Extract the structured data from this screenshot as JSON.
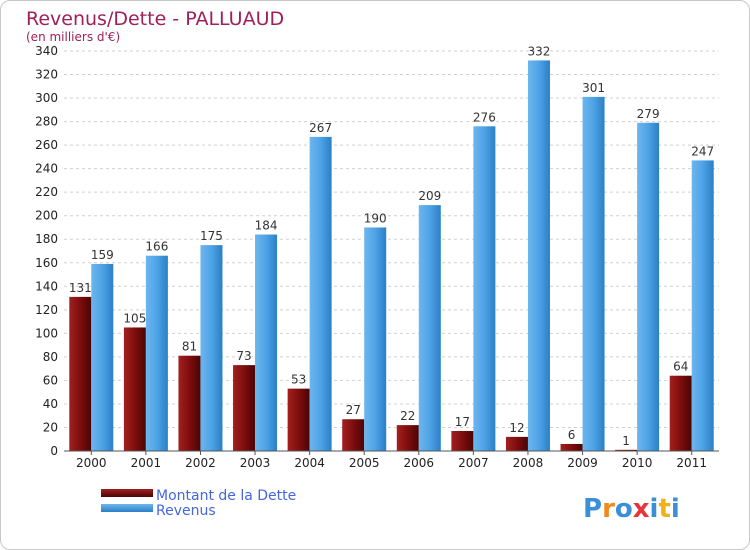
{
  "chart_data": {
    "type": "bar",
    "title": "Revenus/Dette - PALLUAUD",
    "subtitle": "(en milliers d'€)",
    "categories": [
      "2000",
      "2001",
      "2002",
      "2003",
      "2004",
      "2005",
      "2006",
      "2007",
      "2008",
      "2009",
      "2010",
      "2011"
    ],
    "series": [
      {
        "name": "Montant de la Dette",
        "color": "#7a0c0c",
        "values": [
          131,
          105,
          81,
          73,
          53,
          27,
          22,
          17,
          12,
          6,
          1,
          64
        ]
      },
      {
        "name": "Revenus",
        "color": "#4a9fe3",
        "values": [
          159,
          166,
          175,
          184,
          267,
          190,
          209,
          276,
          332,
          301,
          279,
          247
        ]
      }
    ],
    "ylim": [
      0,
      340
    ],
    "yticks": [
      0,
      20,
      40,
      60,
      80,
      100,
      120,
      140,
      160,
      180,
      200,
      220,
      240,
      260,
      280,
      300,
      320,
      340
    ],
    "grid": true,
    "legend": "bottom-left"
  },
  "logo": {
    "letters": [
      "P",
      "r",
      "o",
      "x",
      "i",
      "t",
      "i"
    ],
    "colors": [
      "#3a8fd8",
      "#f08a1c",
      "#3a8fd8",
      "#e8333a",
      "#3a8fd8",
      "#f0b21c",
      "#3a8fd8"
    ]
  }
}
